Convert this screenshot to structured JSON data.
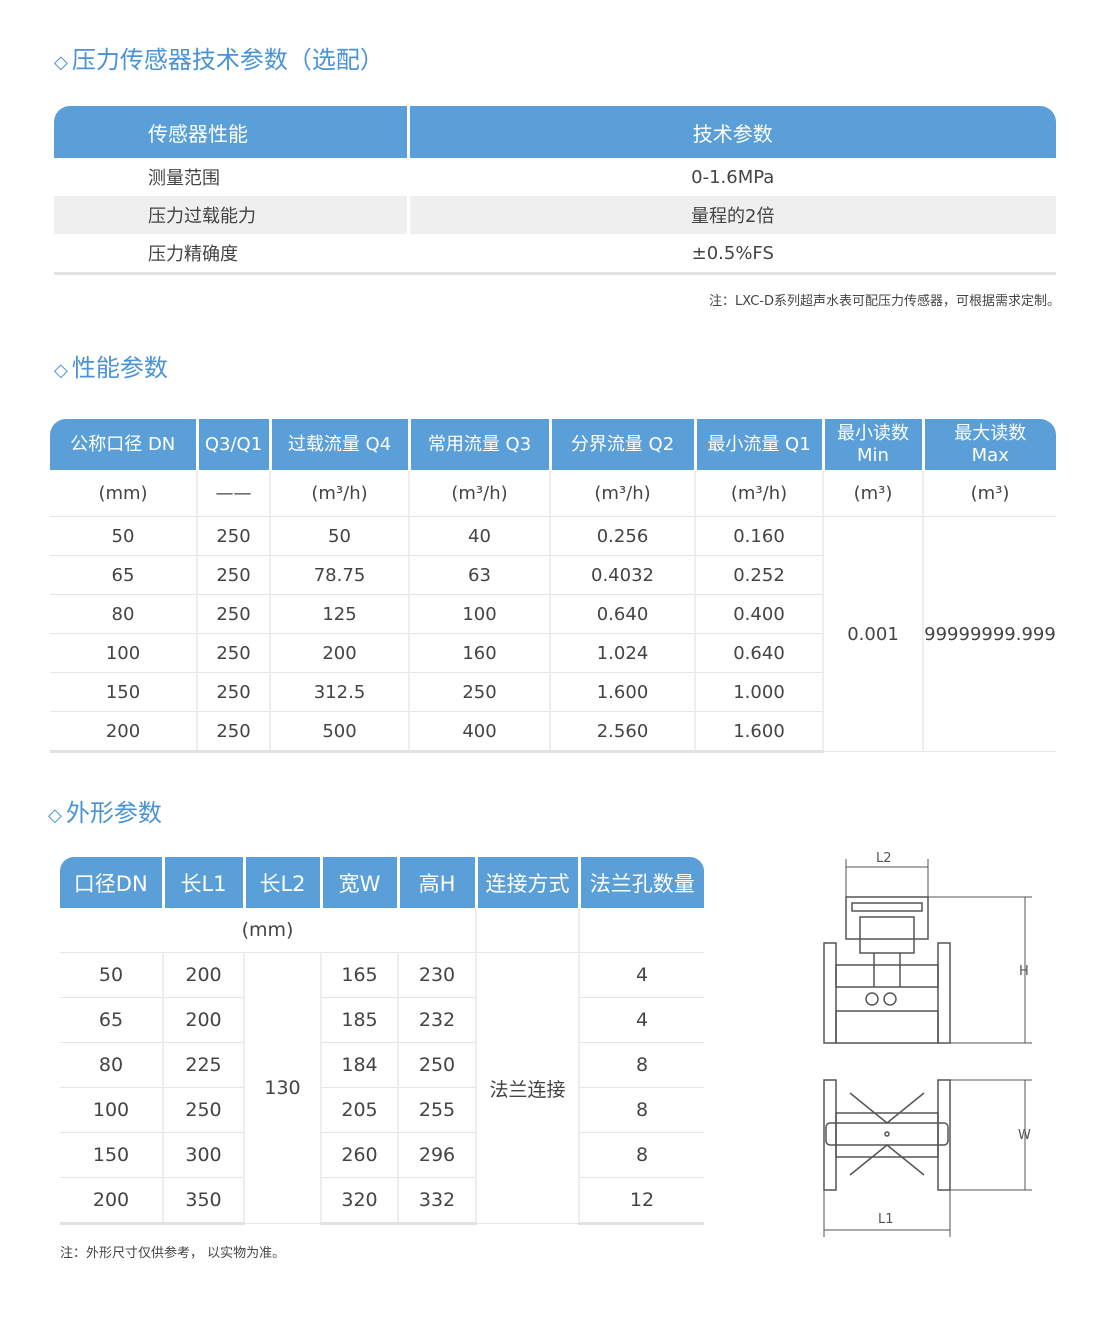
{
  "sections": {
    "sensor_title": "压力传感器技术参数（选配）",
    "perf_title": "性能参数",
    "dim_title": "外形参数",
    "diamond": "◇"
  },
  "sensor_table": {
    "headers": [
      "传感器性能",
      "技术参数"
    ],
    "rows": [
      [
        "测量范围",
        "0-1.6MPa"
      ],
      [
        "压力过载能力",
        "量程的2倍"
      ],
      [
        "压力精确度",
        "±0.5%FS"
      ]
    ],
    "note": "注：LXC-D系列超声水表可配压力传感器，可根据需求定制。"
  },
  "perf_table": {
    "headers": [
      "公称口径 DN",
      "Q3/Q1",
      "过载流量 Q4",
      "常用流量 Q3",
      "分界流量 Q2",
      "最小流量 Q1",
      "最小读数 Min",
      "最大读数 Max"
    ],
    "units": [
      "(mm)",
      "——",
      "(m³/h)",
      "(m³/h)",
      "(m³/h)",
      "(m³/h)",
      "(m³)",
      "(m³)"
    ],
    "rows": [
      [
        "50",
        "250",
        "50",
        "40",
        "0.256",
        "0.160"
      ],
      [
        "65",
        "250",
        "78.75",
        "63",
        "0.4032",
        "0.252"
      ],
      [
        "80",
        "250",
        "125",
        "100",
        "0.640",
        "0.400"
      ],
      [
        "100",
        "250",
        "200",
        "160",
        "1.024",
        "0.640"
      ],
      [
        "150",
        "250",
        "312.5",
        "250",
        "1.600",
        "1.000"
      ],
      [
        "200",
        "250",
        "500",
        "400",
        "2.560",
        "1.600"
      ]
    ],
    "min_reading": "0.001",
    "max_reading": "99999999.999"
  },
  "dim_table": {
    "headers": [
      "口径DN",
      "长L1",
      "长L2",
      "宽W",
      "高H",
      "连接方式",
      "法兰孔数量"
    ],
    "unit": "(mm)",
    "rows": [
      [
        "50",
        "200",
        "165",
        "230",
        "4"
      ],
      [
        "65",
        "200",
        "185",
        "232",
        "4"
      ],
      [
        "80",
        "225",
        "184",
        "250",
        "8"
      ],
      [
        "100",
        "250",
        "205",
        "255",
        "8"
      ],
      [
        "150",
        "300",
        "260",
        "296",
        "8"
      ],
      [
        "200",
        "350",
        "320",
        "332",
        "12"
      ]
    ],
    "l2": "130",
    "connection": "法兰连接",
    "note": "注：外形尺寸仅供参考， 以实物为准。"
  },
  "diagram": {
    "labels": {
      "l2": "L2",
      "h": "H",
      "w": "W",
      "l1": "L1"
    }
  },
  "colors": {
    "accent": "#4a93d6",
    "header_bg": "#5a9fd8",
    "stripe": "#efefef"
  }
}
